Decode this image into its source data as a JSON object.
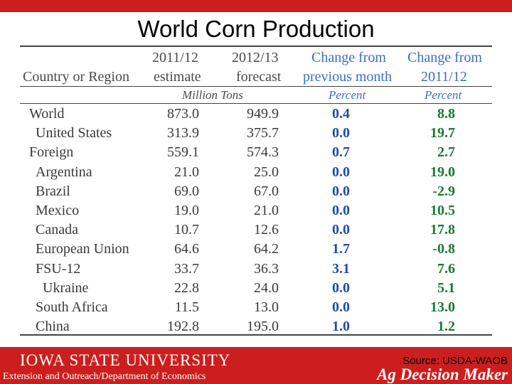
{
  "title": "World Corn Production",
  "table": {
    "headers": {
      "country": "Country or Region",
      "col1_line1": "2011/12",
      "col1_line2": "estimate",
      "col2_line1": "2012/13",
      "col2_line2": "forecast",
      "col3_line1": "Change from",
      "col3_line2": "previous month",
      "col4_line1": "Change from",
      "col4_line2": "2011/12"
    },
    "units": {
      "tons": "Million Tons",
      "percent_month": "Percent",
      "percent_year": "Percent"
    },
    "rows": [
      {
        "name": "World",
        "indent": 0,
        "est": "873.0",
        "fcst": "949.9",
        "chg_month": "0.4",
        "chg_year": "8.8"
      },
      {
        "name": "United States",
        "indent": 1,
        "est": "313.9",
        "fcst": "375.7",
        "chg_month": "0.0",
        "chg_year": "19.7"
      },
      {
        "name": "Foreign",
        "indent": 0,
        "est": "559.1",
        "fcst": "574.3",
        "chg_month": "0.7",
        "chg_year": "2.7"
      },
      {
        "name": "Argentina",
        "indent": 1,
        "est": "21.0",
        "fcst": "25.0",
        "chg_month": "0.0",
        "chg_year": "19.0"
      },
      {
        "name": "Brazil",
        "indent": 1,
        "est": "69.0",
        "fcst": "67.0",
        "chg_month": "0.0",
        "chg_year": "-2.9"
      },
      {
        "name": "Mexico",
        "indent": 1,
        "est": "19.0",
        "fcst": "21.0",
        "chg_month": "0.0",
        "chg_year": "10.5"
      },
      {
        "name": "Canada",
        "indent": 1,
        "est": "10.7",
        "fcst": "12.6",
        "chg_month": "0.0",
        "chg_year": "17.8"
      },
      {
        "name": "European Union",
        "indent": 1,
        "est": "64.6",
        "fcst": "64.2",
        "chg_month": "1.7",
        "chg_year": "-0.8"
      },
      {
        "name": "FSU-12",
        "indent": 1,
        "est": "33.7",
        "fcst": "36.3",
        "chg_month": "3.1",
        "chg_year": "7.6"
      },
      {
        "name": "Ukraine",
        "indent": 2,
        "est": "22.8",
        "fcst": "24.0",
        "chg_month": "0.0",
        "chg_year": "5.1"
      },
      {
        "name": "South Africa",
        "indent": 1,
        "est": "11.5",
        "fcst": "13.0",
        "chg_month": "0.0",
        "chg_year": "13.0"
      },
      {
        "name": "China",
        "indent": 1,
        "est": "192.8",
        "fcst": "195.0",
        "chg_month": "1.0",
        "chg_year": "1.2"
      }
    ]
  },
  "footer": {
    "university": "IOWA STATE UNIVERSITY",
    "extension": "Extension and Outreach/Department of Economics",
    "source": "Source: USDA-WAOB",
    "brand": "Ag Decision Maker"
  },
  "colors": {
    "banner": "#cc1e1e",
    "header_blue": "#3c6ec8",
    "month_change": "#1f4ea6",
    "year_change": "#1a7a33"
  }
}
